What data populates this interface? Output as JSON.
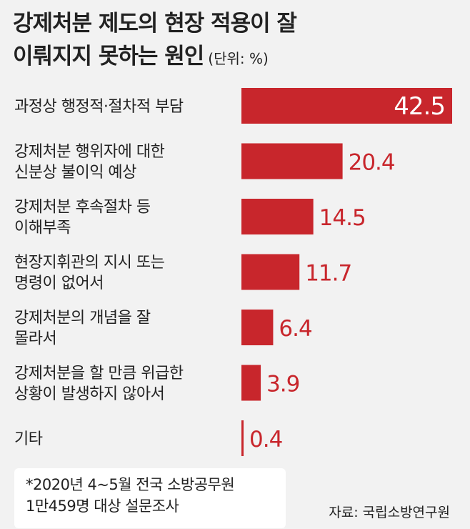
{
  "title": {
    "line1": "강제처분 제도의 현장 적용이 잘",
    "line2": "이뤄지지 못하는 원인",
    "unit": "(단위: %)"
  },
  "chart_data": {
    "type": "bar",
    "orientation": "horizontal",
    "categories": [
      [
        "과정상 행정적·절차적 부담"
      ],
      [
        "강제처분 행위자에 대한",
        "신분상 불이익 예상"
      ],
      [
        "강제처분 후속절차 등",
        "이해부족"
      ],
      [
        "현장지휘관의 지시 또는",
        "명령이 없어서"
      ],
      [
        "강제처분의 개념을 잘",
        "몰라서"
      ],
      [
        "강제처분을 할 만큼 위급한",
        "상황이 발생하지 않아서"
      ],
      [
        "기타"
      ]
    ],
    "values": [
      42.5,
      20.4,
      14.5,
      11.7,
      6.4,
      3.9,
      0.4
    ],
    "value_labels": [
      "42.5",
      "20.4",
      "14.5",
      "11.7",
      "6.4",
      "3.9",
      "0.4"
    ],
    "bar_color": "#c8262c",
    "first_label_color": "#ffffff",
    "label_color": "#c8262c"
  },
  "footnote": {
    "line1": "*2020년 4~5월 전국 소방공무원",
    "line2": "1만459명 대상 설문조사"
  },
  "source": "자료: 국립소방연구원"
}
